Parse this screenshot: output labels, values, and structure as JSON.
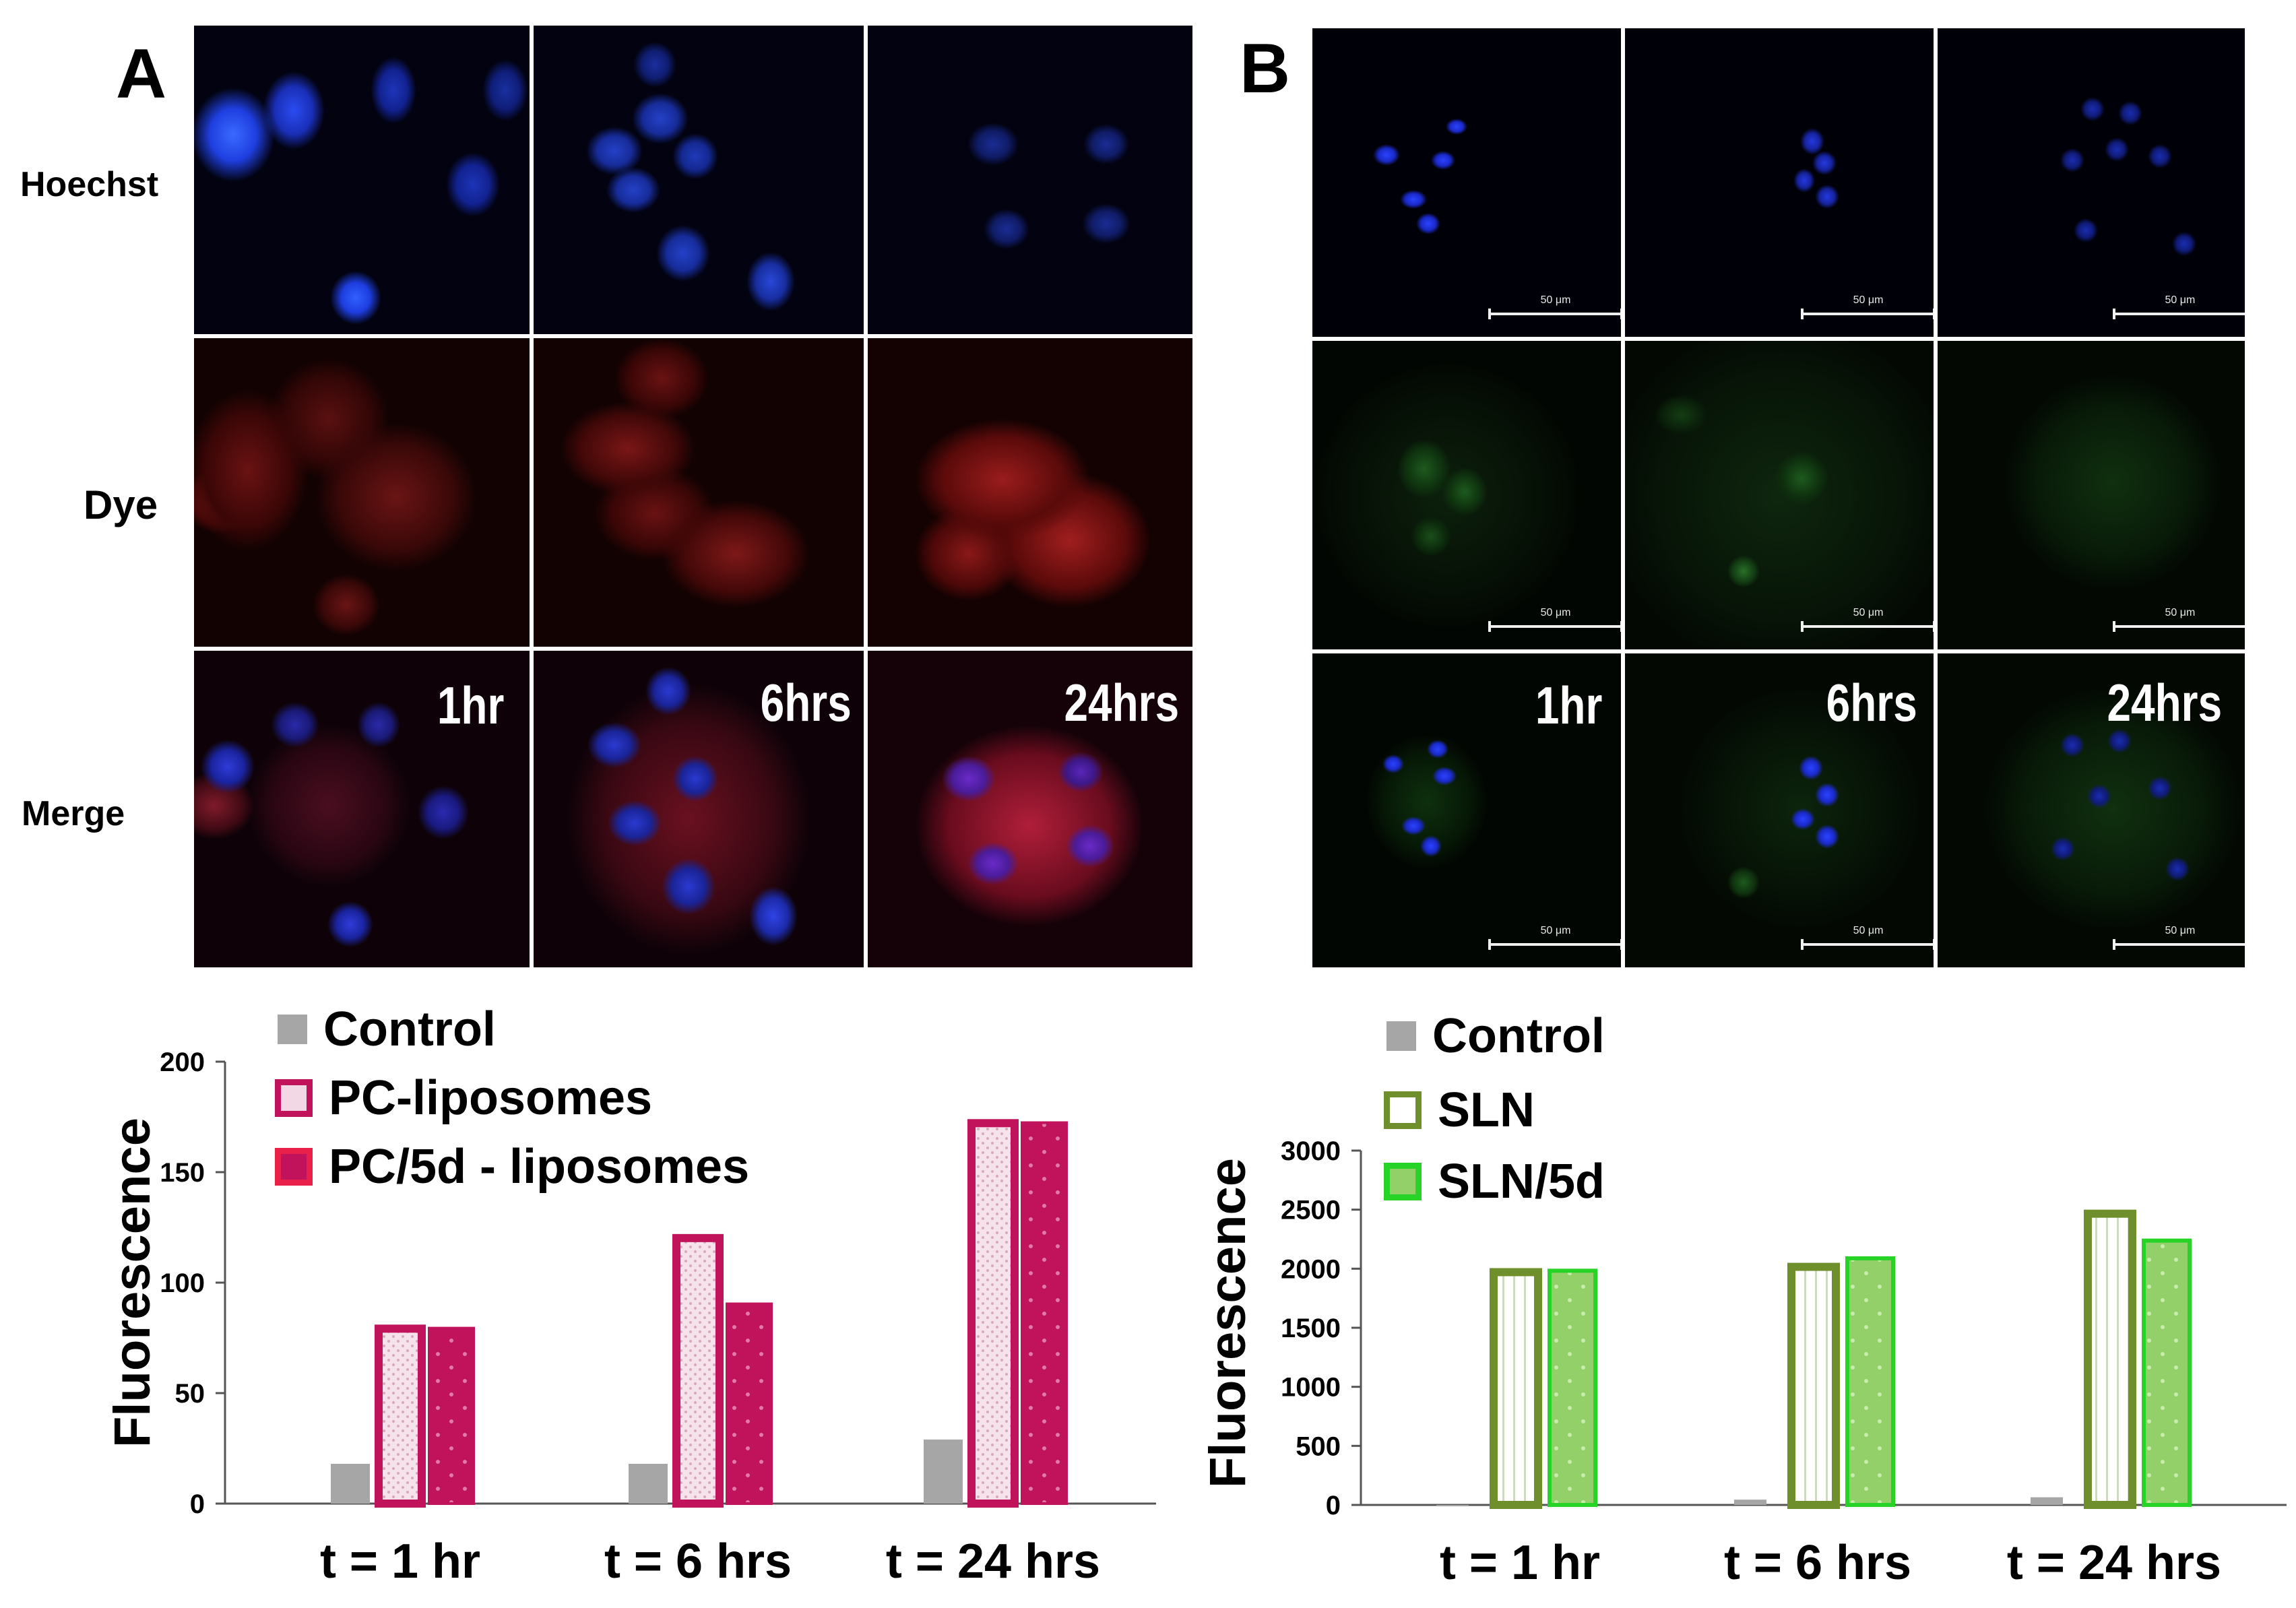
{
  "panel_a": {
    "letter": "A",
    "row_labels": [
      "Hoechst",
      "Dye",
      "Merge"
    ],
    "time_labels": [
      "1hr",
      "6hrs",
      "24hrs"
    ]
  },
  "panel_b": {
    "letter": "B",
    "time_labels": [
      "1hr",
      "6hrs",
      "24hrs"
    ],
    "scale_label": "50 μm"
  },
  "chart_a": {
    "legend": [
      "Control",
      "PC-liposomes",
      "PC/5d - liposomes"
    ],
    "colors": {
      "control": "#a6a6a6",
      "series": "#c0135c",
      "fill_light": "#f2d8e4"
    }
  },
  "chart_b": {
    "legend": [
      "Control",
      "SLN",
      "SLN/5d"
    ],
    "colors": {
      "control": "#a6a6a6",
      "sln": "#6f8f2d",
      "sln5d": "#27d327",
      "fill_sln": "#ffffff",
      "fill_sln5d": "#94d06a"
    }
  },
  "chart_data": [
    {
      "type": "bar",
      "title": "",
      "xlabel": "",
      "ylabel": "Fluorescence",
      "categories": [
        "t = 1 hr",
        "t = 6 hrs",
        "t = 24 hrs"
      ],
      "series": [
        {
          "name": "Control",
          "values": [
            18,
            18,
            29
          ]
        },
        {
          "name": "PC-liposomes",
          "values": [
            81,
            122,
            174
          ]
        },
        {
          "name": "PC/5d - liposomes",
          "values": [
            80,
            91,
            173
          ]
        }
      ],
      "ylim": [
        0,
        200
      ],
      "yticks": [
        "0",
        "50",
        "100",
        "150",
        "200"
      ],
      "legend_position": "top-left",
      "grid": false
    },
    {
      "type": "bar",
      "title": "",
      "xlabel": "",
      "ylabel": "Fluorescence",
      "categories": [
        "t = 1 hr",
        "t = 6 hrs",
        "t = 24 hrs"
      ],
      "series": [
        {
          "name": "Control",
          "values": [
            0,
            45,
            65
          ]
        },
        {
          "name": "SLN",
          "values": [
            2005,
            2050,
            2500
          ]
        },
        {
          "name": "SLN/5d",
          "values": [
            2000,
            2105,
            2255
          ]
        }
      ],
      "ylim": [
        0,
        3000
      ],
      "yticks": [
        "0",
        "500",
        "1000",
        "1500",
        "2000",
        "2500",
        "3000"
      ],
      "legend_position": "top-left",
      "grid": false
    }
  ]
}
